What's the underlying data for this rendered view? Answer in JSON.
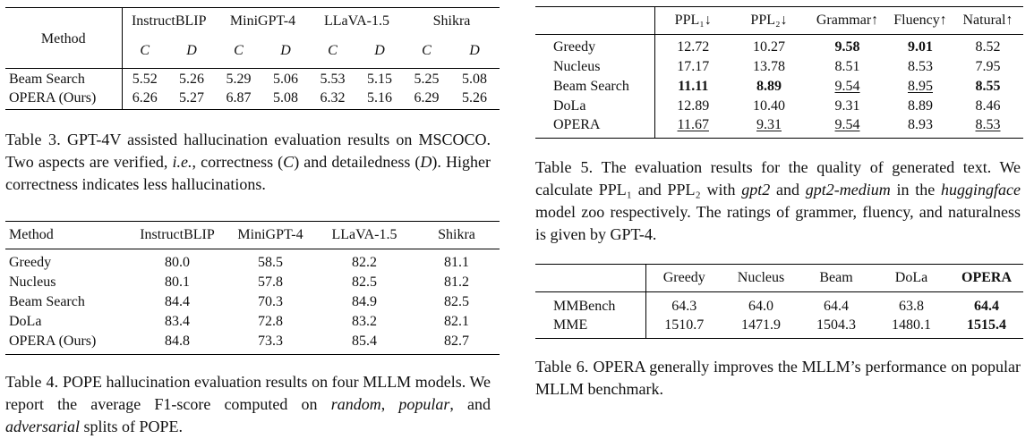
{
  "table3": {
    "method_header": "Method",
    "models": [
      "InstructBLIP",
      "MiniGPT-4",
      "LLaVA-1.5",
      "Shikra"
    ],
    "sub": [
      "C",
      "D"
    ],
    "rows": [
      {
        "name": "Beam Search",
        "vals": [
          "5.52",
          "5.26",
          "5.29",
          "5.06",
          "5.53",
          "5.15",
          "5.25",
          "5.08"
        ]
      },
      {
        "name": "OPERA (Ours)",
        "vals": [
          "6.26",
          "5.27",
          "6.87",
          "5.08",
          "6.32",
          "5.16",
          "6.29",
          "5.26"
        ]
      }
    ],
    "caption": {
      "label": "Table 3.",
      "text_a": "GPT-4V assisted hallucination evaluation results on MSCOCO. Two aspects are verified,",
      "ie": "i.e.",
      "text_b": ", correctness (",
      "c": "C",
      "text_c": ") and detailedness (",
      "d": "D",
      "text_d": "). Higher correctness indicates less hallucinations."
    }
  },
  "table4": {
    "method_header": "Method",
    "models": [
      "InstructBLIP",
      "MiniGPT-4",
      "LLaVA-1.5",
      "Shikra"
    ],
    "rows": [
      {
        "name": "Greedy",
        "vals": [
          "80.0",
          "58.5",
          "82.2",
          "81.1"
        ]
      },
      {
        "name": "Nucleus",
        "vals": [
          "80.1",
          "57.8",
          "82.5",
          "81.2"
        ]
      },
      {
        "name": "Beam Search",
        "vals": [
          "84.4",
          "70.3",
          "84.9",
          "82.5"
        ]
      },
      {
        "name": "DoLa",
        "vals": [
          "83.4",
          "72.8",
          "83.2",
          "82.1"
        ]
      },
      {
        "name": "OPERA (Ours)",
        "vals": [
          "84.8",
          "73.3",
          "85.4",
          "82.7"
        ]
      }
    ],
    "caption": {
      "label": "Table 4.",
      "text_a": "POPE hallucination evaluation results on four MLLM models. We report the average F1-score computed on",
      "random": "random",
      "comma1": ",",
      "popular": "popular",
      "and": ", and",
      "adversarial": "adversarial",
      "text_b": "splits of POPE."
    }
  },
  "table5": {
    "headers": [
      "PPL₁↓",
      "PPL₂↓",
      "Grammar↑",
      "Fluency↑",
      "Natural↑"
    ],
    "rows": [
      {
        "name": "Greedy",
        "vals": [
          "12.72",
          "10.27",
          "9.58",
          "9.01",
          "8.52"
        ]
      },
      {
        "name": "Nucleus",
        "vals": [
          "17.17",
          "13.78",
          "8.51",
          "8.53",
          "7.95"
        ]
      },
      {
        "name": "Beam Search",
        "vals": [
          "11.11",
          "8.89",
          "9.54",
          "8.95",
          "8.55"
        ]
      },
      {
        "name": "DoLa",
        "vals": [
          "12.89",
          "10.40",
          "9.31",
          "8.89",
          "8.46"
        ]
      },
      {
        "name": "OPERA",
        "vals": [
          "11.67",
          "9.31",
          "9.54",
          "8.93",
          "8.53"
        ]
      }
    ],
    "caption": {
      "label": "Table 5.",
      "text_a": "The evaluation results for the quality of generated text. We calculate PPL₁ and PPL₂ with",
      "gpt2": "gpt2",
      "and": "and",
      "gpt2m": "gpt2-medium",
      "text_b": "in the",
      "hf": "huggingface",
      "text_c": "model zoo respectively. The ratings of grammer, fluency, and naturalness is given by GPT-4."
    }
  },
  "table6": {
    "headers": [
      "Greedy",
      "Nucleus",
      "Beam",
      "DoLa",
      "OPERA"
    ],
    "rows": [
      {
        "name": "MMBench",
        "vals": [
          "64.3",
          "64.0",
          "64.4",
          "63.8",
          "64.4"
        ]
      },
      {
        "name": "MME",
        "vals": [
          "1510.7",
          "1471.9",
          "1504.3",
          "1480.1",
          "1515.4"
        ]
      }
    ],
    "caption": {
      "label": "Table 6.",
      "text": "OPERA generally improves the MLLM’s performance on popular MLLM benchmark."
    }
  }
}
